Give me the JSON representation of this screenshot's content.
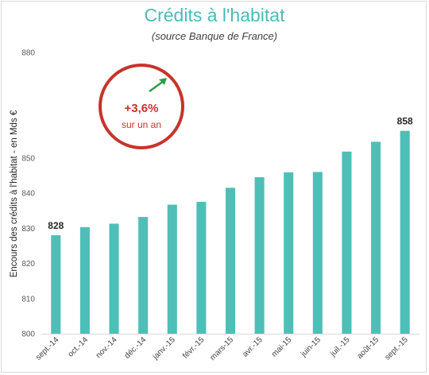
{
  "chart_data": {
    "type": "bar",
    "title": "Crédits à l'habitat",
    "subtitle": "(source Banque de France)",
    "ylabel": "Encours des crédits à l'habitat - en Mds €",
    "xlabel": "",
    "categories": [
      "sept.-14",
      "oct.-14",
      "nov.-14",
      "déc.-14",
      "janv.-15",
      "févr.-15",
      "mars-15",
      "avr.-15",
      "mai-15",
      "juin-15",
      "juil.-15",
      "août-15",
      "sept.-15"
    ],
    "values": [
      828,
      830.3,
      831.3,
      833.2,
      836.7,
      837.5,
      841.5,
      844.5,
      845.9,
      846.0,
      851.8,
      854.6,
      857.7
    ],
    "data_labels": [
      {
        "index": 0,
        "text": "828"
      },
      {
        "index": 12,
        "text": "858"
      }
    ],
    "ylim": [
      800,
      880
    ],
    "yticks": [
      800,
      810,
      820,
      830,
      840,
      850,
      860,
      870,
      880
    ],
    "ytick_labels": [
      "800",
      "810",
      "820",
      "830",
      "840",
      "850",
      "",
      "",
      "880"
    ],
    "grid": false,
    "legend": "none",
    "bar_color": "#4ebfb7"
  },
  "badge": {
    "value": "+3,6%",
    "label": "sur un an",
    "ring_color": "#c8332b",
    "arrow_color": "#2e9d4a",
    "icon": "trend-up-arrow-icon"
  }
}
